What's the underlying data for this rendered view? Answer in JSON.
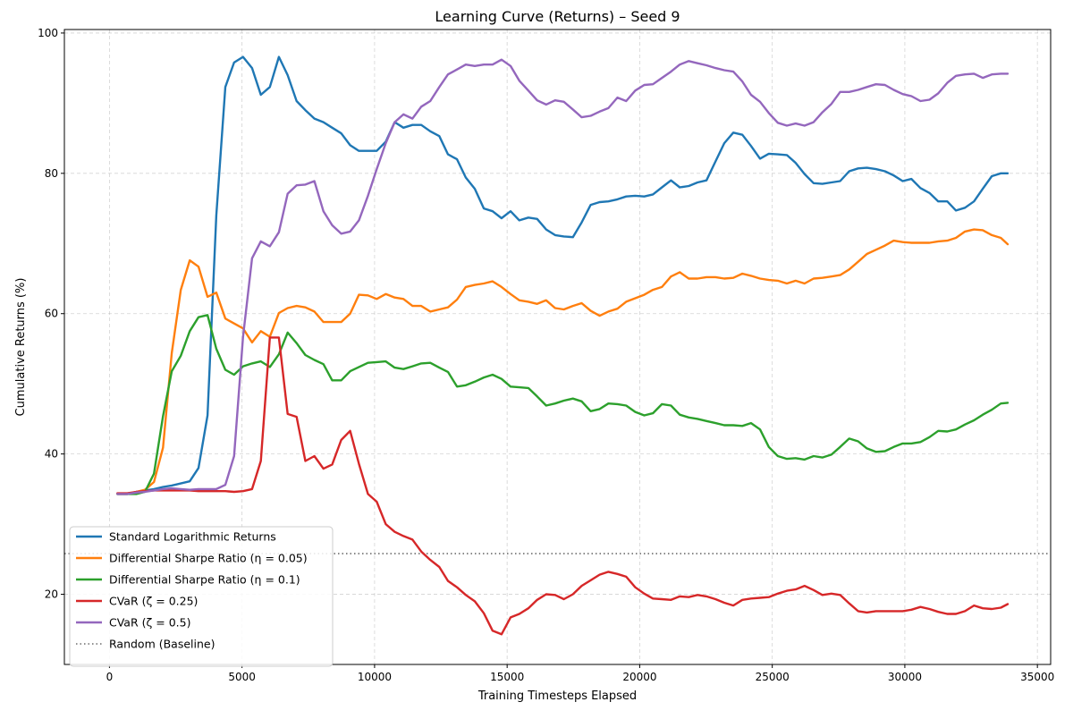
{
  "chart_data": {
    "type": "line",
    "title": "Learning Curve (Returns) – Seed 9",
    "xlabel": "Training Timesteps Elapsed",
    "ylabel": "Cumulative Returns (%)",
    "xlim": [
      -1700,
      35500
    ],
    "ylim": [
      10,
      100.5
    ],
    "xticks": [
      0,
      5000,
      10000,
      15000,
      20000,
      25000,
      30000,
      35000
    ],
    "xtick_labels": [
      "0",
      "5000",
      "10000",
      "15000",
      "20000",
      "25000",
      "30000",
      "35000"
    ],
    "yticks": [
      20,
      40,
      60,
      80,
      100
    ],
    "ytick_labels": [
      "20",
      "40",
      "60",
      "80",
      "100"
    ],
    "grid": true,
    "legend_position": "lower-left",
    "baseline": {
      "name": "Random (Baseline)",
      "value": 25.8,
      "color": "#808080",
      "style": "dotted"
    },
    "x": [
      300,
      670,
      1010,
      1340,
      1680,
      2020,
      2350,
      2690,
      3030,
      3360,
      3700,
      4030,
      4370,
      4700,
      5040,
      5380,
      5710,
      6050,
      6390,
      6720,
      7060,
      7390,
      7730,
      8070,
      8400,
      8740,
      9080,
      9410,
      9750,
      10080,
      10420,
      10760,
      11090,
      11430,
      11760,
      12100,
      12440,
      12770,
      13110,
      13440,
      13780,
      14120,
      14450,
      14790,
      15130,
      15460,
      15800,
      16130,
      16470,
      16810,
      17140,
      17480,
      17810,
      18150,
      18490,
      18820,
      19160,
      19490,
      19830,
      20170,
      20500,
      20840,
      21180,
      21510,
      21850,
      22180,
      22520,
      22860,
      23190,
      23530,
      23870,
      24200,
      24540,
      24870,
      25210,
      25550,
      25880,
      26220,
      26560,
      26890,
      27230,
      27560,
      27900,
      28240,
      28570,
      28910,
      29250,
      29580,
      29920,
      30250,
      30590,
      30930,
      31260,
      31600,
      31930,
      32270,
      32610,
      32940,
      33280,
      33620,
      33880
    ],
    "series": [
      {
        "name": "Standard Logarithmic Returns",
        "color": "#1f77b4",
        "values": [
          34.3,
          34.3,
          34.6,
          34.8,
          35.0,
          35.3,
          35.5,
          35.8,
          36.1,
          38.0,
          45.5,
          74.0,
          92.3,
          95.8,
          96.6,
          95.0,
          91.2,
          92.3,
          96.6,
          94.0,
          90.3,
          89.0,
          87.8,
          87.3,
          86.5,
          85.7,
          84.0,
          83.2,
          83.2,
          83.2,
          84.5,
          87.3,
          86.5,
          86.9,
          86.9,
          86.0,
          85.3,
          82.7,
          82.0,
          79.4,
          77.8,
          75.0,
          74.6,
          73.6,
          74.6,
          73.3,
          73.7,
          73.5,
          72.0,
          71.2,
          71.0,
          70.9,
          73.0,
          75.5,
          75.9,
          76.0,
          76.3,
          76.7,
          76.8,
          76.7,
          77.0,
          78.0,
          79.0,
          78.0,
          78.2,
          78.7,
          79.0,
          81.7,
          84.3,
          85.8,
          85.5,
          83.9,
          82.1,
          82.8,
          82.7,
          82.6,
          81.5,
          79.9,
          78.6,
          78.5,
          78.7,
          78.9,
          80.3,
          80.7,
          80.8,
          80.6,
          80.3,
          79.7,
          78.9,
          79.2,
          77.9,
          77.2,
          76.0,
          76.0,
          74.7,
          75.1,
          76.0,
          77.8,
          79.6,
          80.0,
          80.0
        ]
      },
      {
        "name": "Differential Sharpe Ratio (η = 0.05)",
        "color": "#ff7f0e",
        "values": [
          34.3,
          34.3,
          34.6,
          34.9,
          36.0,
          40.9,
          54.4,
          63.4,
          67.6,
          66.7,
          62.4,
          63.0,
          59.3,
          58.6,
          57.9,
          55.9,
          57.5,
          56.7,
          60.1,
          60.8,
          61.1,
          60.9,
          60.3,
          58.8,
          58.8,
          58.8,
          60.0,
          62.7,
          62.6,
          62.1,
          62.8,
          62.3,
          62.1,
          61.1,
          61.1,
          60.3,
          60.6,
          60.9,
          62.0,
          63.8,
          64.1,
          64.3,
          64.6,
          63.8,
          62.8,
          61.9,
          61.7,
          61.4,
          61.9,
          60.8,
          60.6,
          61.1,
          61.5,
          60.4,
          59.7,
          60.3,
          60.7,
          61.7,
          62.2,
          62.7,
          63.4,
          63.8,
          65.3,
          65.9,
          65.0,
          65.0,
          65.2,
          65.2,
          65.0,
          65.1,
          65.7,
          65.4,
          65.0,
          64.8,
          64.7,
          64.3,
          64.7,
          64.3,
          65.0,
          65.1,
          65.3,
          65.5,
          66.3,
          67.4,
          68.5,
          69.1,
          69.7,
          70.4,
          70.2,
          70.1,
          70.1,
          70.1,
          70.3,
          70.4,
          70.8,
          71.7,
          72.0,
          71.9,
          71.2,
          70.8,
          69.9
        ]
      },
      {
        "name": "Differential Sharpe Ratio (η = 0.1)",
        "color": "#2ca02c",
        "values": [
          34.3,
          34.3,
          34.3,
          34.6,
          37.2,
          45.4,
          51.8,
          54.0,
          57.5,
          59.5,
          59.8,
          55.0,
          52.0,
          51.3,
          52.5,
          52.9,
          53.2,
          52.4,
          54.2,
          57.3,
          55.8,
          54.1,
          53.4,
          52.8,
          50.5,
          50.5,
          51.8,
          52.4,
          53.0,
          53.1,
          53.2,
          52.3,
          52.1,
          52.5,
          52.9,
          53.0,
          52.3,
          51.7,
          49.6,
          49.8,
          50.3,
          50.9,
          51.3,
          50.7,
          49.6,
          49.5,
          49.4,
          48.2,
          46.9,
          47.2,
          47.6,
          47.9,
          47.5,
          46.1,
          46.4,
          47.2,
          47.1,
          46.9,
          46.0,
          45.5,
          45.8,
          47.1,
          46.9,
          45.6,
          45.2,
          45.0,
          44.7,
          44.4,
          44.1,
          44.1,
          44.0,
          44.4,
          43.5,
          41.0,
          39.7,
          39.3,
          39.4,
          39.2,
          39.7,
          39.5,
          39.9,
          41.0,
          42.2,
          41.8,
          40.8,
          40.3,
          40.4,
          41.0,
          41.5,
          41.5,
          41.7,
          42.4,
          43.3,
          43.2,
          43.5,
          44.2,
          44.8,
          45.6,
          46.3,
          47.2,
          47.3
        ]
      },
      {
        "name": "CVaR (ζ = 0.25)",
        "color": "#d62728",
        "values": [
          34.4,
          34.4,
          34.6,
          34.7,
          34.8,
          34.8,
          34.8,
          34.8,
          34.8,
          34.7,
          34.7,
          34.7,
          34.7,
          34.6,
          34.7,
          35.0,
          39.0,
          56.6,
          56.6,
          45.7,
          45.3,
          39.0,
          39.7,
          37.9,
          38.5,
          42.0,
          43.3,
          38.6,
          34.3,
          33.2,
          30.0,
          28.9,
          28.3,
          27.8,
          26.1,
          24.9,
          23.9,
          21.9,
          21.0,
          19.9,
          19.0,
          17.3,
          14.8,
          14.3,
          16.7,
          17.2,
          18.0,
          19.2,
          20.0,
          19.9,
          19.3,
          20.0,
          21.2,
          22.0,
          22.8,
          23.2,
          22.9,
          22.5,
          21.0,
          20.1,
          19.4,
          19.3,
          19.2,
          19.7,
          19.6,
          19.9,
          19.7,
          19.3,
          18.8,
          18.4,
          19.2,
          19.4,
          19.5,
          19.6,
          20.1,
          20.5,
          20.7,
          21.2,
          20.6,
          19.9,
          20.1,
          19.9,
          18.7,
          17.6,
          17.4,
          17.6,
          17.6,
          17.6,
          17.6,
          17.8,
          18.2,
          17.9,
          17.5,
          17.2,
          17.2,
          17.6,
          18.4,
          18.0,
          17.9,
          18.1,
          18.6
        ]
      },
      {
        "name": "CVaR (ζ = 0.5)",
        "color": "#9467bd",
        "values": [
          34.3,
          34.3,
          34.5,
          34.6,
          34.8,
          35.0,
          35.1,
          35.0,
          34.9,
          35.0,
          35.0,
          35.0,
          35.6,
          39.7,
          56.7,
          67.9,
          70.3,
          69.6,
          71.6,
          77.1,
          78.3,
          78.4,
          78.9,
          74.6,
          72.6,
          71.4,
          71.7,
          73.3,
          76.8,
          80.6,
          84.3,
          87.3,
          88.4,
          87.8,
          89.5,
          90.3,
          92.3,
          94.1,
          94.8,
          95.5,
          95.3,
          95.5,
          95.5,
          96.2,
          95.3,
          93.2,
          91.8,
          90.4,
          89.8,
          90.4,
          90.2,
          89.1,
          88.0,
          88.2,
          88.8,
          89.3,
          90.8,
          90.3,
          91.8,
          92.6,
          92.7,
          93.6,
          94.5,
          95.5,
          96.0,
          95.7,
          95.4,
          95.0,
          94.7,
          94.5,
          93.1,
          91.2,
          90.2,
          88.6,
          87.2,
          86.8,
          87.1,
          86.8,
          87.3,
          88.7,
          89.9,
          91.6,
          91.6,
          91.9,
          92.3,
          92.7,
          92.6,
          91.9,
          91.3,
          91.0,
          90.3,
          90.5,
          91.4,
          92.9,
          93.9,
          94.1,
          94.2,
          93.6,
          94.1,
          94.2,
          94.2
        ]
      }
    ]
  }
}
